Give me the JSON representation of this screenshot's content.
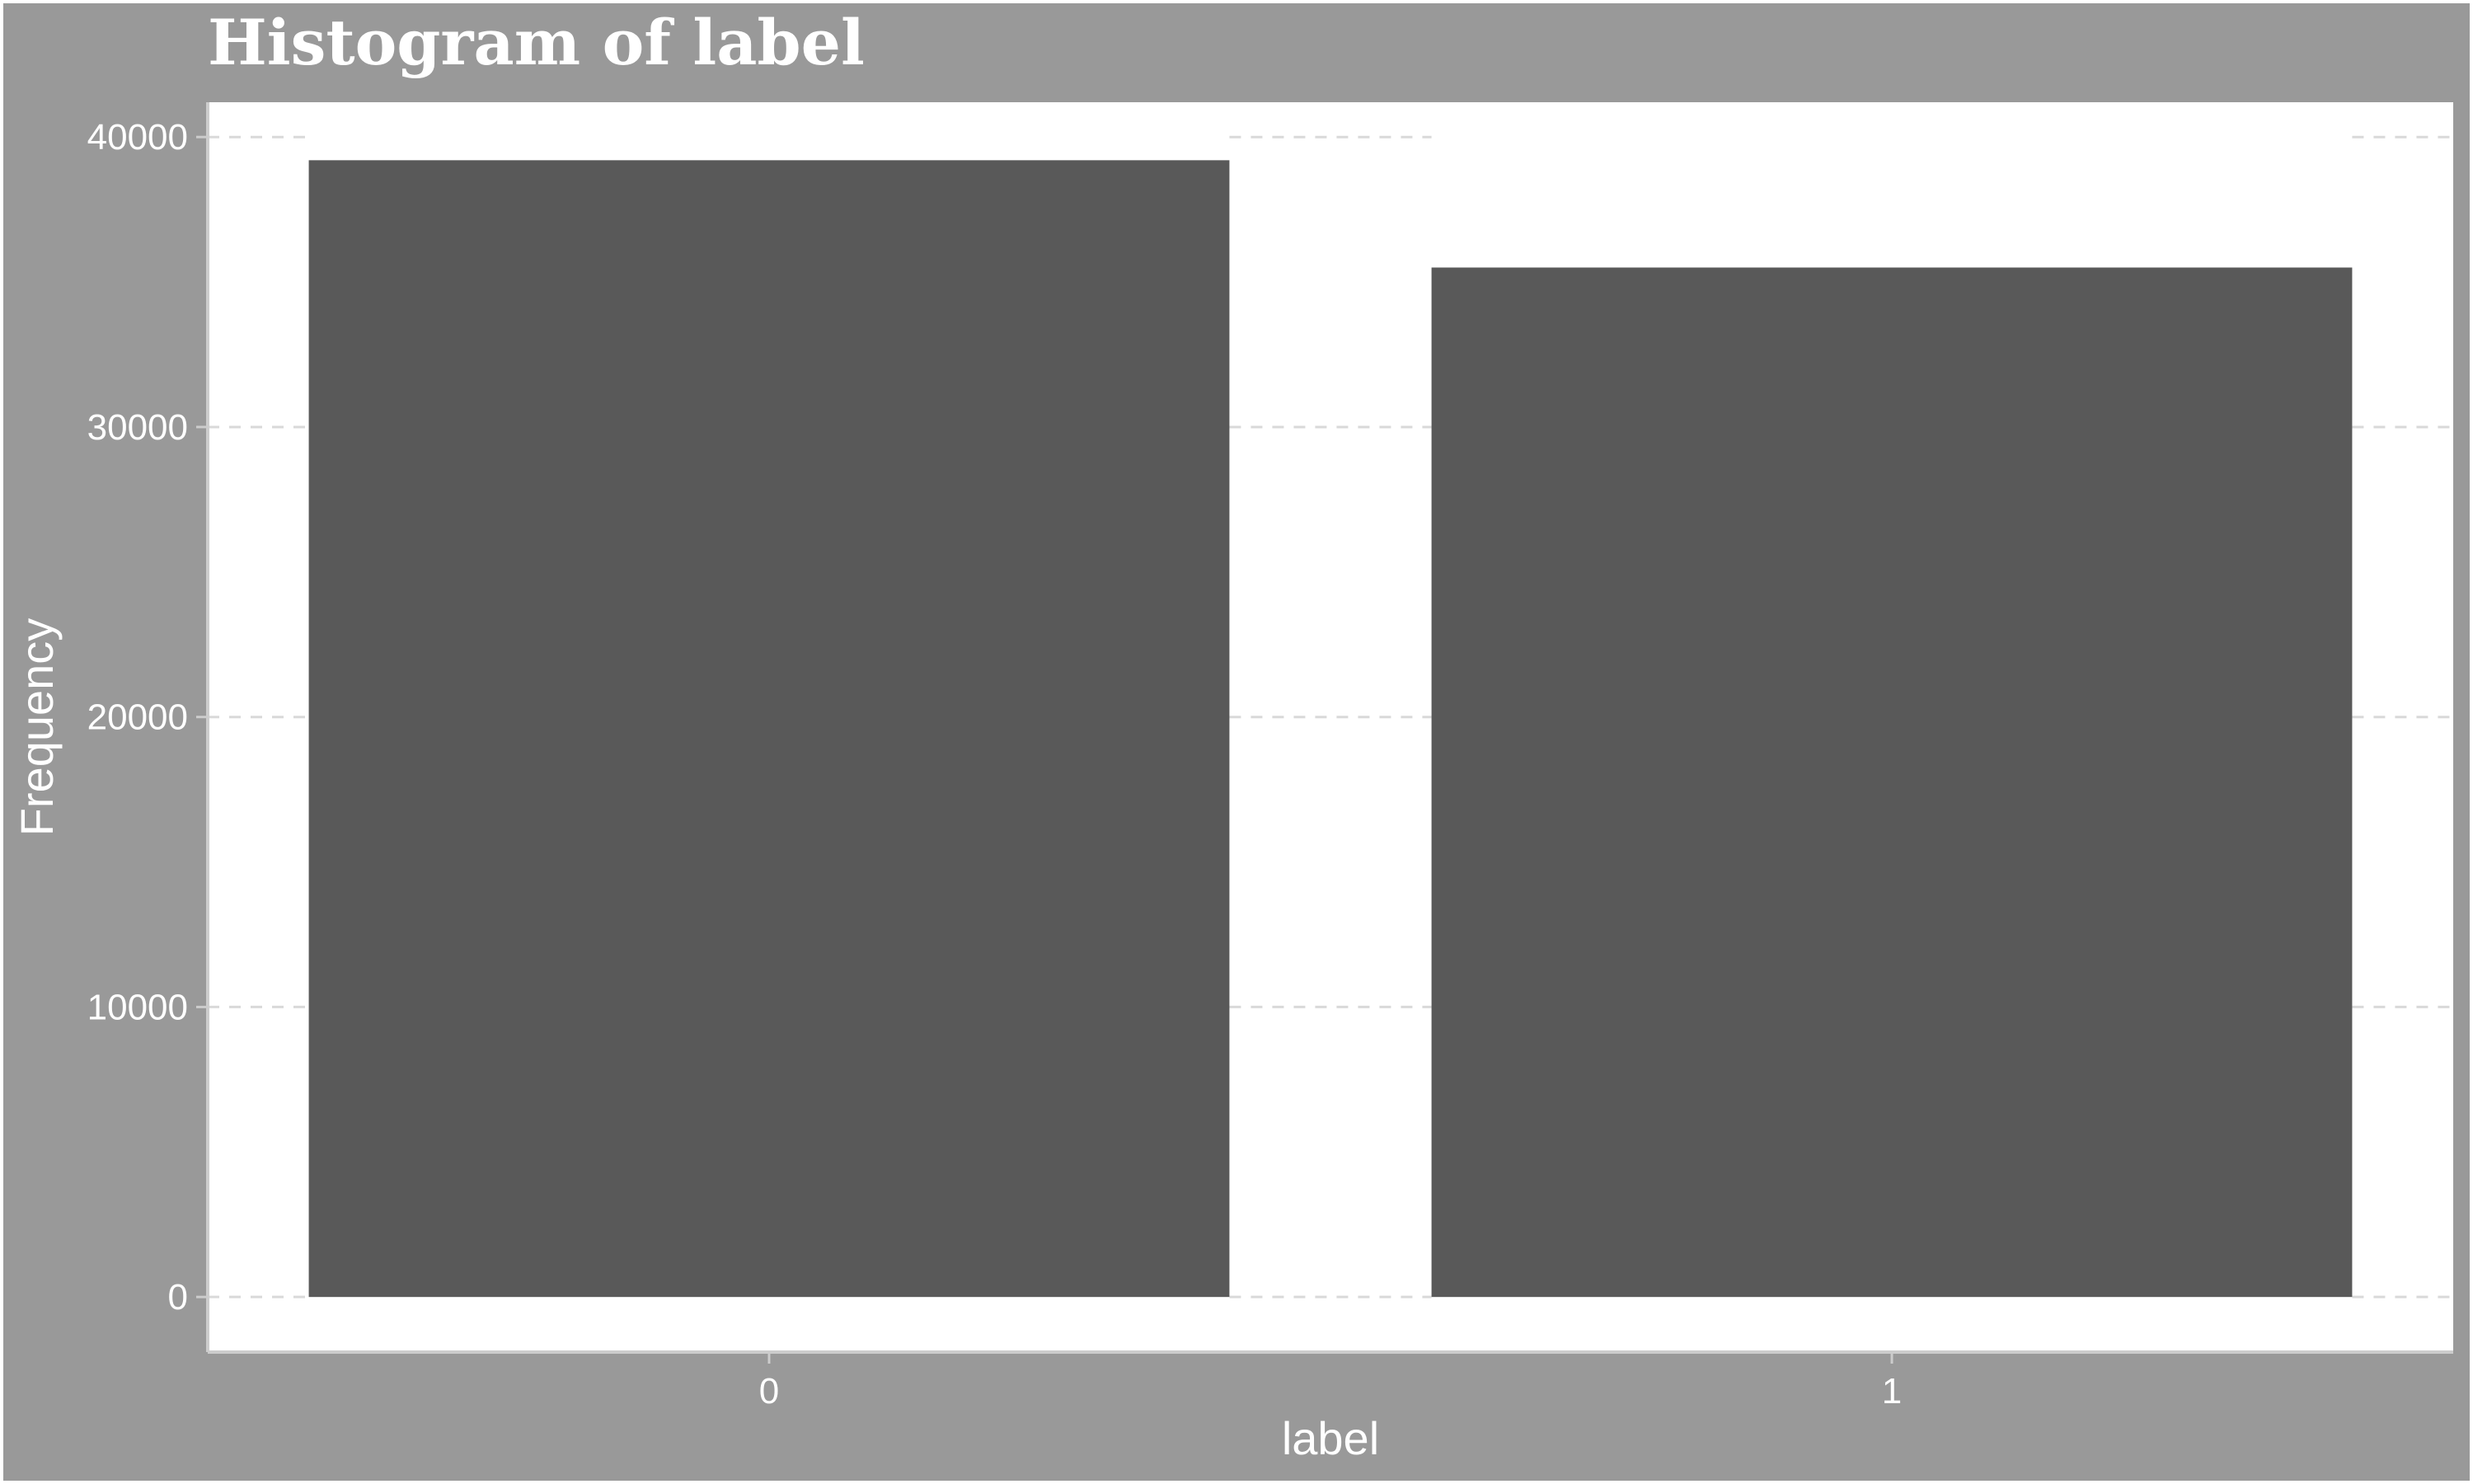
{
  "chart_data": {
    "type": "bar",
    "title": "Histogram of label",
    "xlabel": "label",
    "ylabel": "Frequency",
    "categories": [
      "0",
      "1"
    ],
    "values": [
      39200,
      35500
    ],
    "ylim": [
      -1900,
      41200
    ],
    "yticks": [
      0,
      10000,
      20000,
      30000,
      40000
    ],
    "grid": true,
    "legend": "none",
    "colors": {
      "background": "#999999",
      "panel": "#ffffff",
      "bar": "#595959",
      "grid": "#d9d9d9",
      "text": "#ffffff"
    }
  }
}
